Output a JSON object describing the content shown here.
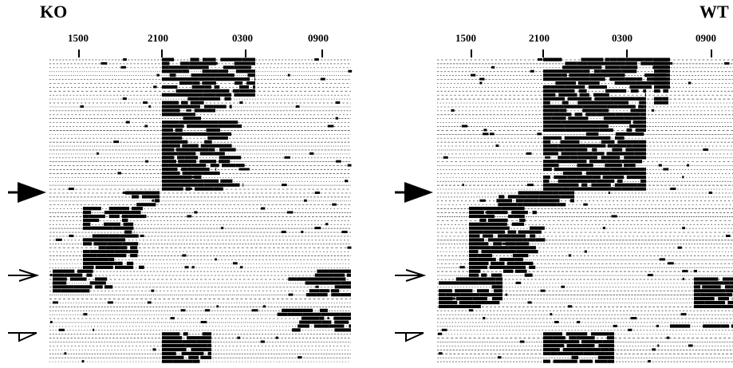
{
  "panels": [
    {
      "label": "KO",
      "ticks": [
        "1500",
        "2100",
        "0300",
        "0900"
      ]
    },
    {
      "label": "WT",
      "ticks": [
        "1500",
        "2100",
        "0300",
        "0900"
      ]
    }
  ],
  "colors": {
    "ink": "#000000",
    "background": "#ffffff"
  },
  "markers": [
    "filled-arrow",
    "open-arrow",
    "open-half-arrow"
  ]
}
